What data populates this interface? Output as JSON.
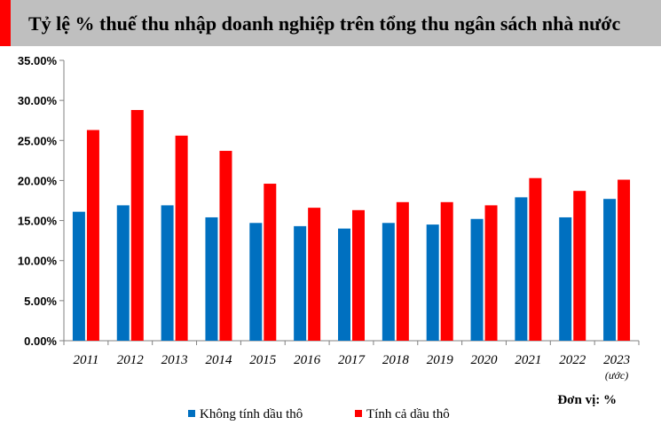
{
  "chart_data": {
    "type": "bar",
    "title": "Tỷ lệ % thuế thu nhập doanh nghiệp trên tổng thu ngân sách nhà nước",
    "unit_label": "Đơn vị: %",
    "categories": [
      "2011",
      "2012",
      "2013",
      "2014",
      "2015",
      "2016",
      "2017",
      "2018",
      "2019",
      "2020",
      "2021",
      "2022",
      "2023"
    ],
    "category_sublabels": [
      "",
      "",
      "",
      "",
      "",
      "",
      "",
      "",
      "",
      "",
      "",
      "",
      "(ước)"
    ],
    "series": [
      {
        "name": "Không tính dầu thô",
        "color": "#0070C0",
        "values": [
          16.1,
          16.9,
          16.9,
          15.4,
          14.7,
          14.3,
          14.0,
          14.7,
          14.5,
          15.2,
          17.9,
          15.4,
          17.7
        ]
      },
      {
        "name": "Tính cả dầu thô",
        "color": "#FF0000",
        "values": [
          26.3,
          28.8,
          25.6,
          23.7,
          19.6,
          16.6,
          16.3,
          17.3,
          17.3,
          16.9,
          20.3,
          18.7,
          20.1
        ]
      }
    ],
    "ylim": [
      0,
      35
    ],
    "yticks": [
      "0.00%",
      "5.00%",
      "10.00%",
      "15.00%",
      "20.00%",
      "25.00%",
      "30.00%",
      "35.00%"
    ],
    "ytick_values": [
      0,
      5,
      10,
      15,
      20,
      25,
      30,
      35
    ],
    "grid": false,
    "legend_position": "bottom",
    "title_bar_color": "#BFBFBF",
    "title_accent_color": "#FF0000"
  }
}
